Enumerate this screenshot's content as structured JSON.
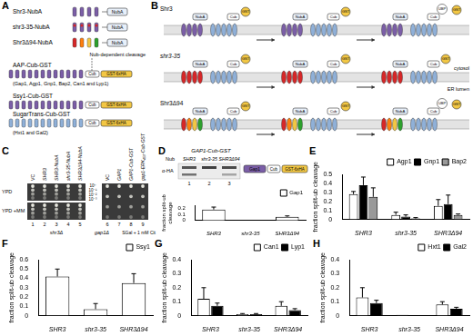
{
  "figure": {
    "panel_labels": [
      "A",
      "B",
      "C",
      "D",
      "E",
      "F",
      "G",
      "H"
    ],
    "a": {
      "constructs": [
        "Shr3-NubA",
        "shr3-35-NubA",
        "Shr3Δ94-NubA"
      ],
      "nub": "NubA",
      "cleavage": "Nub-dependent cleavage",
      "reporters": [
        {
          "name": "AAP-Cub-GST",
          "members": "(Gap1, Agp1, Gnp1, Bap2, Can1 and Lyp1)"
        },
        {
          "name": "Ssy1-Cub-GST"
        },
        {
          "name": "SugarTrans-Cub-GST",
          "members": "(Hxt1 and Gal2)"
        }
      ],
      "cub": "Cub",
      "tag": "GST-6xHA"
    },
    "b": {
      "rows": [
        "Shr3",
        "shr3-35",
        "Shr3Δ94"
      ],
      "gst": "GST",
      "cub": "Cub",
      "nub": "NubA",
      "ubp": "UBP",
      "cytosol": "cytosol",
      "lumen": "ER lumen"
    },
    "c": {
      "left_strains": [
        "VC",
        "SHR3",
        "SHR3-NubA",
        "shr3-35-NubA",
        "SHR3Δ94-NubA"
      ],
      "left_background": "shr3Δ",
      "right_strains": [
        "VC",
        "GAP1",
        "GAP1-Cub-GST",
        "gap1-ERK₄₅₀-Cub-GST"
      ],
      "right_background": "gap1Δ",
      "media": [
        "YPD",
        "YPD +MM"
      ],
      "right_medium": "SGal + 1 mM Cit",
      "dilutions": [
        "10⁰",
        "10⁻¹",
        "10⁻²",
        "10⁻³"
      ],
      "lanes": [
        "1",
        "2",
        "3",
        "4",
        "5",
        "6",
        "7",
        "8",
        "9"
      ]
    },
    "d": {
      "title": "GAP1-Cub-GST",
      "nub": "Nub",
      "lanes_header": [
        "SHR3",
        "shr3-35",
        "SHR3Δ94"
      ],
      "antibody": "α-HA",
      "lanes": [
        "1",
        "2",
        "3"
      ],
      "protein": "Gap1",
      "cub": "Cub",
      "tag": "GST-6xHA"
    }
  },
  "chart_data": [
    {
      "type": "bar",
      "categories": [
        "SHR3",
        "shr3-35",
        "SHR3Δ94"
      ],
      "ylabel": "fraction split-ub cleavage",
      "ylim": [
        0,
        0.25
      ],
      "yticks": [
        0,
        0.1,
        0.2
      ],
      "grid": false,
      "legend": "top-right",
      "series": [
        {
          "name": "Gap1",
          "color": "#ffffff",
          "values": [
            0.18,
            0,
            0.06
          ],
          "errors": [
            0.04,
            0,
            0.015
          ]
        }
      ]
    },
    {
      "type": "bar",
      "categories": [
        "SHR3",
        "shr3-35",
        "SHR3Δ94"
      ],
      "ylabel": "fraction split-ub cleavage",
      "ylim": [
        0,
        0.5
      ],
      "yticks": [
        0,
        0.1,
        0.2,
        0.3,
        0.4,
        0.5
      ],
      "grid": false,
      "legend": "top-right",
      "series": [
        {
          "name": "Agp1",
          "color": "#ffffff",
          "values": [
            0.28,
            0.05,
            0.15
          ],
          "errors": [
            0.03,
            0.03,
            0.07
          ]
        },
        {
          "name": "Gnp1",
          "color": "#000000",
          "values": [
            0.38,
            0.03,
            0.17
          ],
          "errors": [
            0.09,
            0.02,
            0.1
          ]
        },
        {
          "name": "Bap2",
          "color": "#999999",
          "values": [
            0.25,
            0.01,
            0.05
          ],
          "errors": [
            0.1,
            0.01,
            0.01
          ]
        }
      ]
    },
    {
      "type": "bar",
      "categories": [
        "SHR3",
        "shr3-35",
        "SHR3Δ94"
      ],
      "ylabel": "fraction split-ub cleavage",
      "ylim": [
        0,
        0.6
      ],
      "yticks": [
        0,
        0.1,
        0.2,
        0.3,
        0.4,
        0.5,
        0.6
      ],
      "grid": false,
      "legend": "top-right",
      "series": [
        {
          "name": "Ssy1",
          "color": "#ffffff",
          "values": [
            0.42,
            0.07,
            0.35
          ],
          "errors": [
            0.08,
            0.06,
            0.1
          ]
        }
      ]
    },
    {
      "type": "bar",
      "categories": [
        "SHR3",
        "shr3-35",
        "SHR3Δ94"
      ],
      "ylabel": "fraction split-ub cleavage",
      "ylim": [
        0,
        0.4
      ],
      "yticks": [
        0,
        0.1,
        0.2,
        0.3,
        0.4
      ],
      "grid": false,
      "legend": "top-right",
      "series": [
        {
          "name": "Can1",
          "color": "#ffffff",
          "values": [
            0.12,
            0.01,
            0.07
          ],
          "errors": [
            0.08,
            0.005,
            0.03
          ]
        },
        {
          "name": "Lyp1",
          "color": "#000000",
          "values": [
            0.07,
            0.01,
            0.04
          ],
          "errors": [
            0.02,
            0.005,
            0.01
          ]
        }
      ]
    },
    {
      "type": "bar",
      "categories": [
        "SHR3",
        "shr3-35",
        "SHR3Δ94"
      ],
      "ylabel": "fraction split-ub cleavage",
      "ylim": [
        0,
        0.4
      ],
      "yticks": [
        0,
        0.1,
        0.2,
        0.3,
        0.4
      ],
      "grid": false,
      "legend": "top-right",
      "series": [
        {
          "name": "Hxt1",
          "color": "#ffffff",
          "values": [
            0.13,
            0.005,
            0.08
          ],
          "errors": [
            0.07,
            0,
            0.02
          ]
        },
        {
          "name": "Gal2",
          "color": "#000000",
          "values": [
            0.09,
            0.003,
            0.05
          ],
          "errors": [
            0.02,
            0,
            0.01
          ]
        }
      ]
    }
  ]
}
